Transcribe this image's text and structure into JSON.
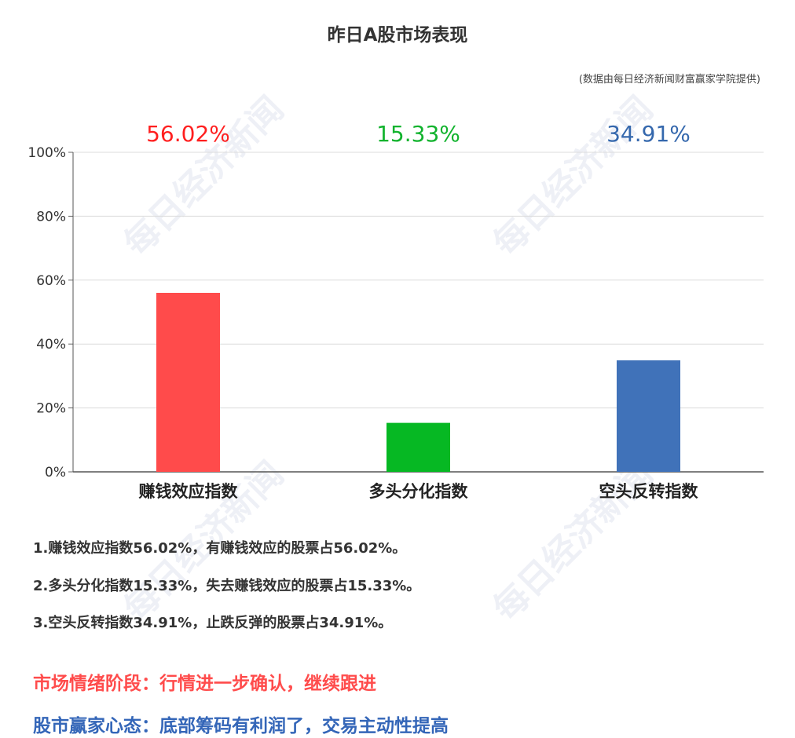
{
  "source_note": "(数据由每日经济新闻财富赢家学院提供)",
  "watermark": "每日经济新闻",
  "notes": [
    "1.赚钱效应指数56.02%，有赚钱效应的股票占56.02%。",
    "2.多头分化指数15.33%，失去赚钱效应的股票占15.33%。",
    "3.空头反转指数34.91%，止跌反弹的股票占34.91%。"
  ],
  "summary": {
    "stage": "市场情绪阶段：行情进一步确认，继续跟进",
    "mindset": "股市赢家心态：底部筹码有利润了，交易主动性提高"
  },
  "colors": {
    "stage_text": "#ff4c4c",
    "mindset_text": "#3466b8"
  },
  "chart_data": {
    "type": "bar",
    "title": "昨日A股市场表现",
    "categories": [
      "赚钱效应指数",
      "多头分化指数",
      "空头反转指数"
    ],
    "values": [
      56.02,
      15.33,
      34.91
    ],
    "value_labels": [
      "56.02%",
      "15.33%",
      "34.91%"
    ],
    "bar_colors": [
      "#ff4b4b",
      "#06b823",
      "#4072b9"
    ],
    "label_colors": [
      "#ff1f1f",
      "#12b32e",
      "#3568ad"
    ],
    "ylim": [
      0,
      100
    ],
    "yticks": [
      "0%",
      "20%",
      "40%",
      "60%",
      "80%",
      "100%"
    ],
    "grid": true
  }
}
